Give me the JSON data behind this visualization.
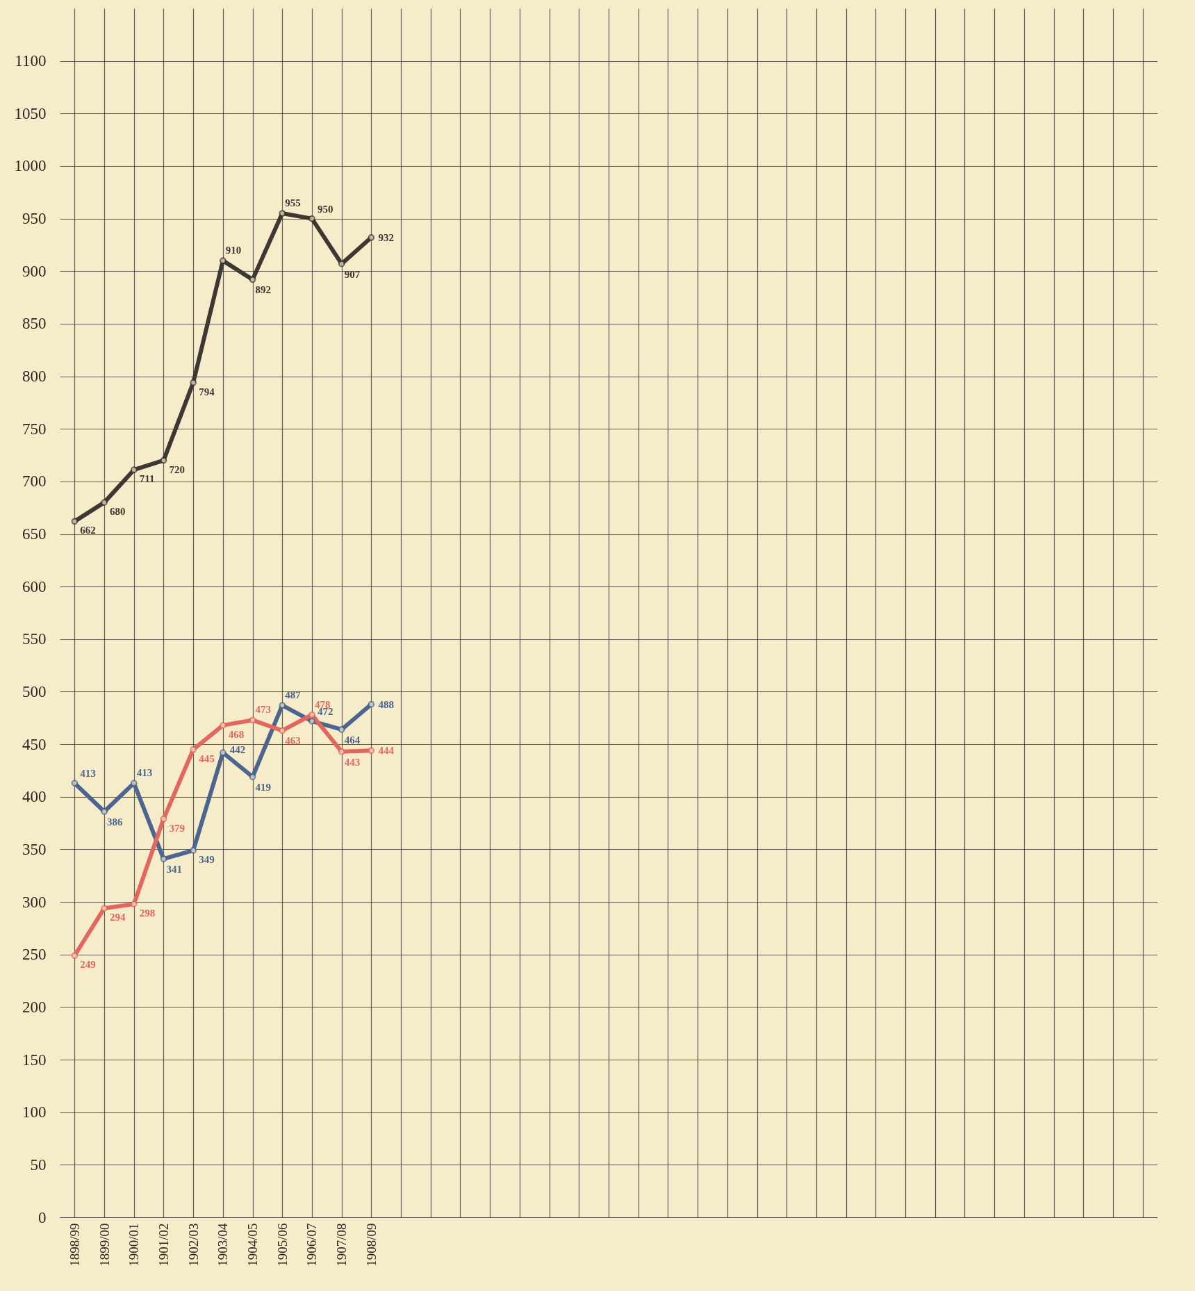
{
  "chart_data": {
    "type": "line",
    "categories": [
      "1898/99",
      "1899/00",
      "1900/01",
      "1901/02",
      "1902/03",
      "1903/04",
      "1904/05",
      "1905/06",
      "1906/07",
      "1907/08",
      "1908/09",
      null,
      null,
      null,
      null,
      null,
      null,
      null,
      null,
      null,
      null,
      null,
      null,
      null,
      null,
      null,
      null,
      null,
      null,
      null,
      null,
      null,
      null,
      null,
      null,
      null,
      null
    ],
    "series": [
      {
        "color": "#3d3834",
        "values": [
          662,
          680,
          711,
          720,
          794,
          910,
          892,
          955,
          950,
          907,
          932,
          null,
          null,
          null,
          null,
          null,
          null,
          null,
          null,
          null,
          null,
          null,
          null,
          null,
          null,
          null,
          null,
          null,
          null,
          null,
          null,
          null,
          null,
          null,
          null,
          null,
          null
        ]
      },
      {
        "color": "#4b6590",
        "values": [
          413,
          386,
          413,
          341,
          349,
          442,
          419,
          487,
          472,
          464,
          488,
          null,
          null,
          null,
          null,
          null,
          null,
          null,
          null,
          null,
          null,
          null,
          null,
          null,
          null,
          null,
          null,
          null,
          null,
          null,
          null,
          null,
          null,
          null,
          null,
          null,
          null
        ]
      },
      {
        "color": "#e2675f",
        "values": [
          249,
          294,
          298,
          379,
          445,
          468,
          473,
          463,
          478,
          443,
          444,
          null,
          null,
          null,
          null,
          null,
          null,
          null,
          null,
          null,
          null,
          null,
          null,
          null,
          null,
          null,
          null,
          null,
          null,
          null,
          null,
          null,
          null,
          null,
          null,
          null,
          null
        ]
      }
    ],
    "ylim": [
      0,
      1150
    ],
    "yticks": [
      0,
      50,
      100,
      150,
      200,
      250,
      300,
      350,
      400,
      450,
      500,
      550,
      600,
      650,
      700,
      750,
      800,
      850,
      900,
      950,
      1000,
      1050,
      1100
    ],
    "grid": true,
    "legend": false,
    "marker": "circle",
    "line_style": "solid",
    "data_labels": true
  }
}
